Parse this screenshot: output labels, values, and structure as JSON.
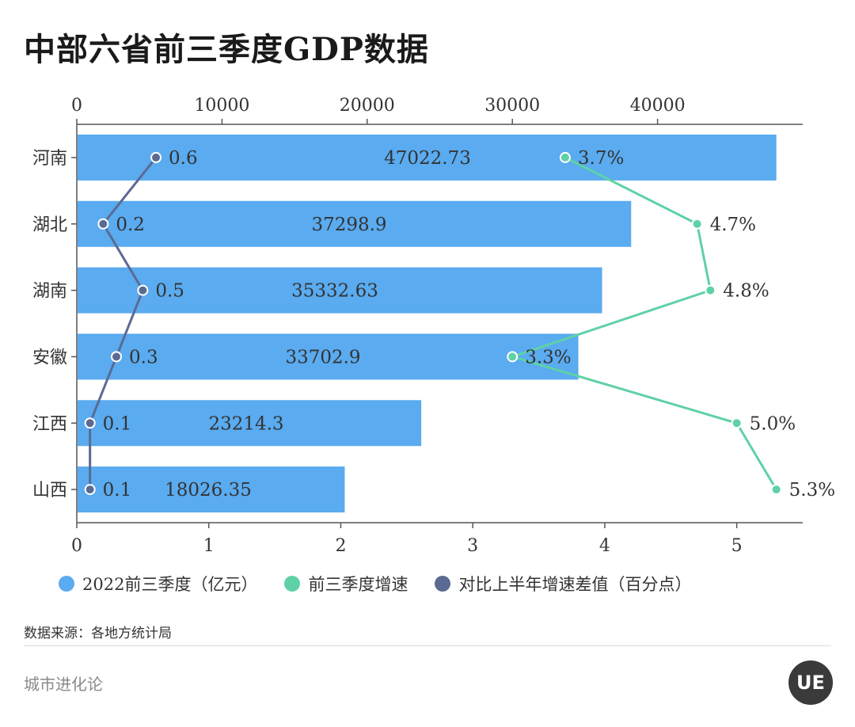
{
  "title": "中部六省前三季度GDP数据",
  "chart_data": {
    "type": "bar",
    "orientation": "horizontal",
    "categories": [
      "河南",
      "湖北",
      "湖南",
      "安徽",
      "江西",
      "山西"
    ],
    "top_axis": {
      "range": [
        0,
        50000
      ],
      "ticks": [
        0,
        10000,
        20000,
        30000,
        40000
      ]
    },
    "bottom_axis": {
      "range": [
        0,
        5.5
      ],
      "ticks": [
        0,
        1,
        2,
        3,
        4,
        5
      ]
    },
    "series": [
      {
        "name": "2022前三季度（亿元）",
        "type": "bar",
        "axis": "bottom",
        "values": [
          5.3,
          4.2,
          3.98,
          3.8,
          2.61,
          2.03
        ],
        "labels": [
          "47022.73",
          "37298.9",
          "35332.63",
          "33702.9",
          "23214.3",
          "18026.35"
        ],
        "color": "#5aabf0"
      },
      {
        "name": "前三季度增速",
        "type": "line",
        "axis": "bottom",
        "values": [
          3.7,
          4.7,
          4.8,
          3.3,
          5.0,
          5.3
        ],
        "labels": [
          "3.7%",
          "4.7%",
          "4.8%",
          "3.3%",
          "5.0%",
          "5.3%"
        ],
        "color": "#5fd1a6"
      },
      {
        "name": "对比上半年增速差值（百分点）",
        "type": "line",
        "axis": "bottom",
        "values": [
          0.6,
          0.2,
          0.5,
          0.3,
          0.1,
          0.1
        ],
        "labels": [
          "0.6",
          "0.2",
          "0.5",
          "0.3",
          "0.1",
          "0.1"
        ],
        "color": "#5b6a93"
      }
    ],
    "legend_position": "bottom-left",
    "grid": false
  },
  "source": "数据来源：各地方统计局",
  "brand": "城市进化论",
  "logo_text": "UE"
}
